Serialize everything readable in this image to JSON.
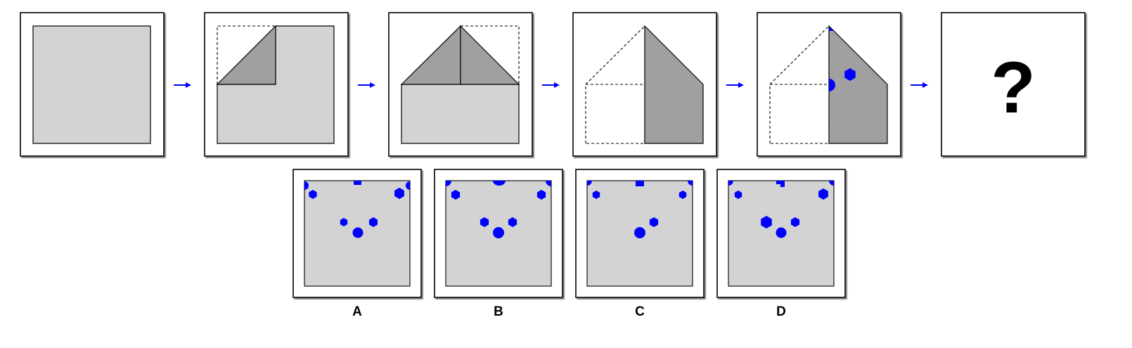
{
  "colors": {
    "background": "#ffffff",
    "frame_stroke": "#000000",
    "paper": "#d3d3d3",
    "folded_flap": "#a0a0a0",
    "unfolded_area": "#ffffff",
    "hole": "#0000ff",
    "arrow": "#0000ff"
  },
  "sequence": {
    "steps": [
      {
        "id": "step-1",
        "description_icon": "square-paper-icon"
      },
      {
        "id": "step-2",
        "description_icon": "fold-top-left-corner-icon"
      },
      {
        "id": "step-3",
        "description_icon": "fold-top-right-corner-icon"
      },
      {
        "id": "step-4",
        "description_icon": "fold-left-half-icon"
      },
      {
        "id": "step-5",
        "description_icon": "punched-holes-icon"
      }
    ],
    "arrow_icon": "right-arrow-icon",
    "question_mark": "?"
  },
  "options": [
    {
      "label": "A"
    },
    {
      "label": "B"
    },
    {
      "label": "C"
    },
    {
      "label": "D"
    }
  ]
}
